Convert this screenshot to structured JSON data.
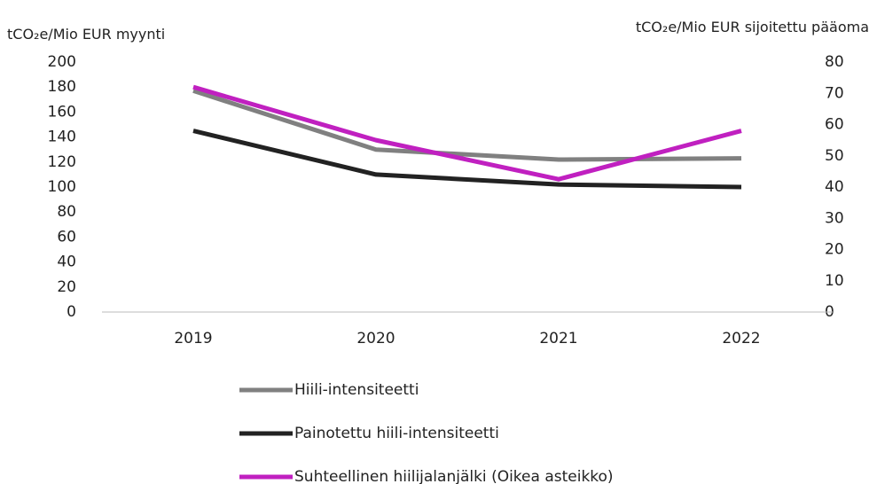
{
  "chart_data": {
    "type": "line",
    "y_label": "tCO₂e/Mio EUR myynti",
    "y2_label": "tCO₂e/Mio EUR sijoitettu pääoma",
    "categories": [
      "2019",
      "2020",
      "2021",
      "2022"
    ],
    "series": [
      {
        "name": "Hiili-intensiteetti",
        "color": "#808080",
        "values": [
          177,
          130,
          122,
          123
        ]
      },
      {
        "name": "Painotettu hiili-intensiteetti",
        "color": "#222222",
        "values": [
          145,
          110,
          102,
          100
        ]
      },
      {
        "name": "Suhteellinen hiilijalanjälki (Oikea asteikko)",
        "color": "#c020c0",
        "axis": "y2",
        "values": [
          72,
          55,
          42.5,
          58
        ]
      }
    ],
    "ylim": [
      0,
      200
    ],
    "yticks": [
      0,
      20,
      40,
      60,
      80,
      100,
      120,
      140,
      160,
      180,
      200
    ],
    "y2lim": [
      0,
      80
    ],
    "y2ticks": [
      0,
      10,
      20,
      30,
      40,
      50,
      60,
      70,
      80
    ],
    "grid": false,
    "legend": "bottom"
  }
}
